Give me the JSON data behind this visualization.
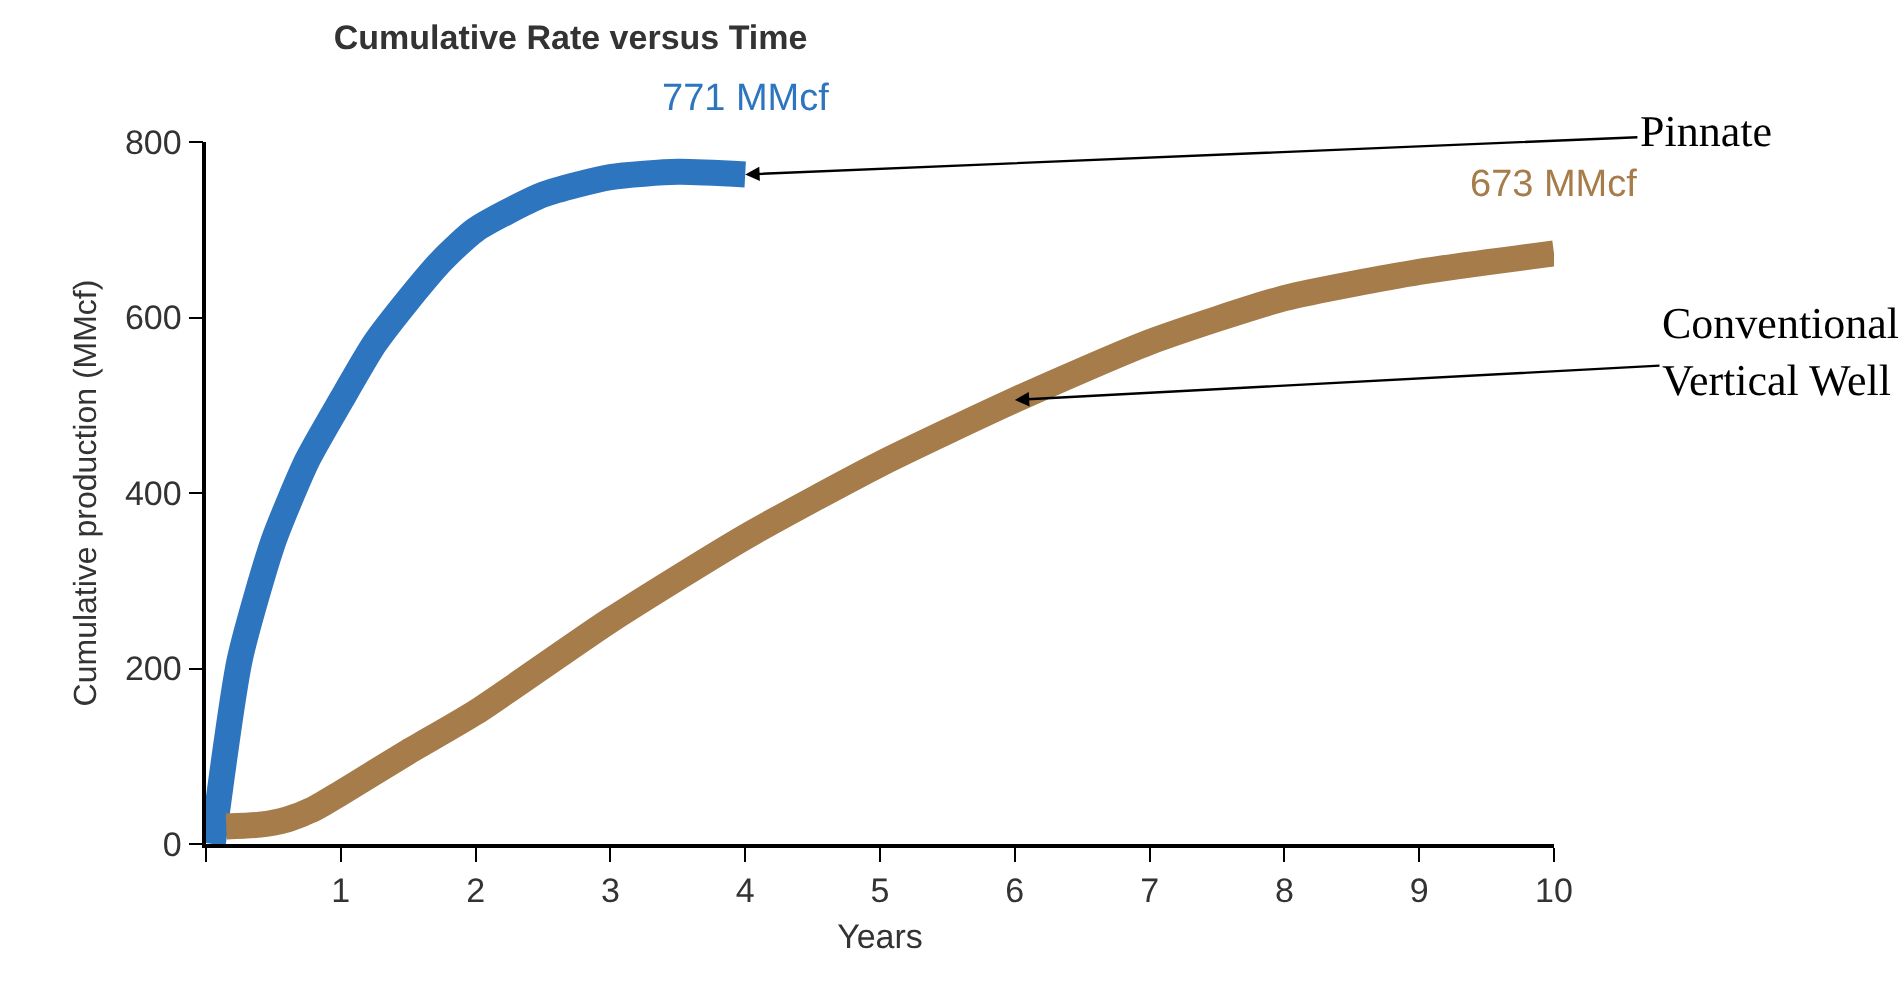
{
  "chart_data": {
    "type": "line",
    "title": "Cumulative Rate versus Time",
    "xlabel": "Years",
    "ylabel": "Cumulative production (MMcf)",
    "series": [
      {
        "color": "#2e75c0",
        "x": [
          0.05,
          0.25,
          0.5,
          0.75,
          1.0,
          1.25,
          1.5,
          1.75,
          2.0,
          2.5,
          3.0,
          3.5,
          4.0
        ],
        "values": [
          0,
          210,
          345,
          437,
          505,
          570,
          620,
          665,
          700,
          740,
          760,
          766,
          763
        ]
      },
      {
        "color": "#a57c4a",
        "x": [
          0.15,
          0.4,
          0.6,
          0.8,
          1.0,
          1.5,
          2.0,
          3.0,
          4.0,
          5.0,
          6.0,
          7.0,
          8.0,
          9.0,
          10.0
        ],
        "values": [
          20,
          22,
          28,
          40,
          58,
          105,
          150,
          255,
          350,
          433,
          506,
          572,
          622,
          652,
          673
        ]
      }
    ],
    "annotations": [
      {
        "text": "771 MMcf",
        "x": 4,
        "y": 771
      },
      {
        "text": "673 MMcf",
        "x": 10,
        "y": 673
      },
      {
        "text": "Pinnate",
        "x": 4,
        "y": 763
      },
      {
        "text": "Conventional\nVertical Well",
        "x": 6,
        "y": 506
      }
    ],
    "xlim": [
      0,
      10
    ],
    "xticks": [
      {
        "value": 0,
        "label": null
      },
      1,
      2,
      3,
      4,
      5,
      6,
      7,
      8,
      9,
      10
    ],
    "ylim": [
      0,
      800
    ],
    "yticks": [
      0,
      200,
      400,
      600,
      800
    ],
    "marker": "none",
    "line_style": "solid"
  }
}
